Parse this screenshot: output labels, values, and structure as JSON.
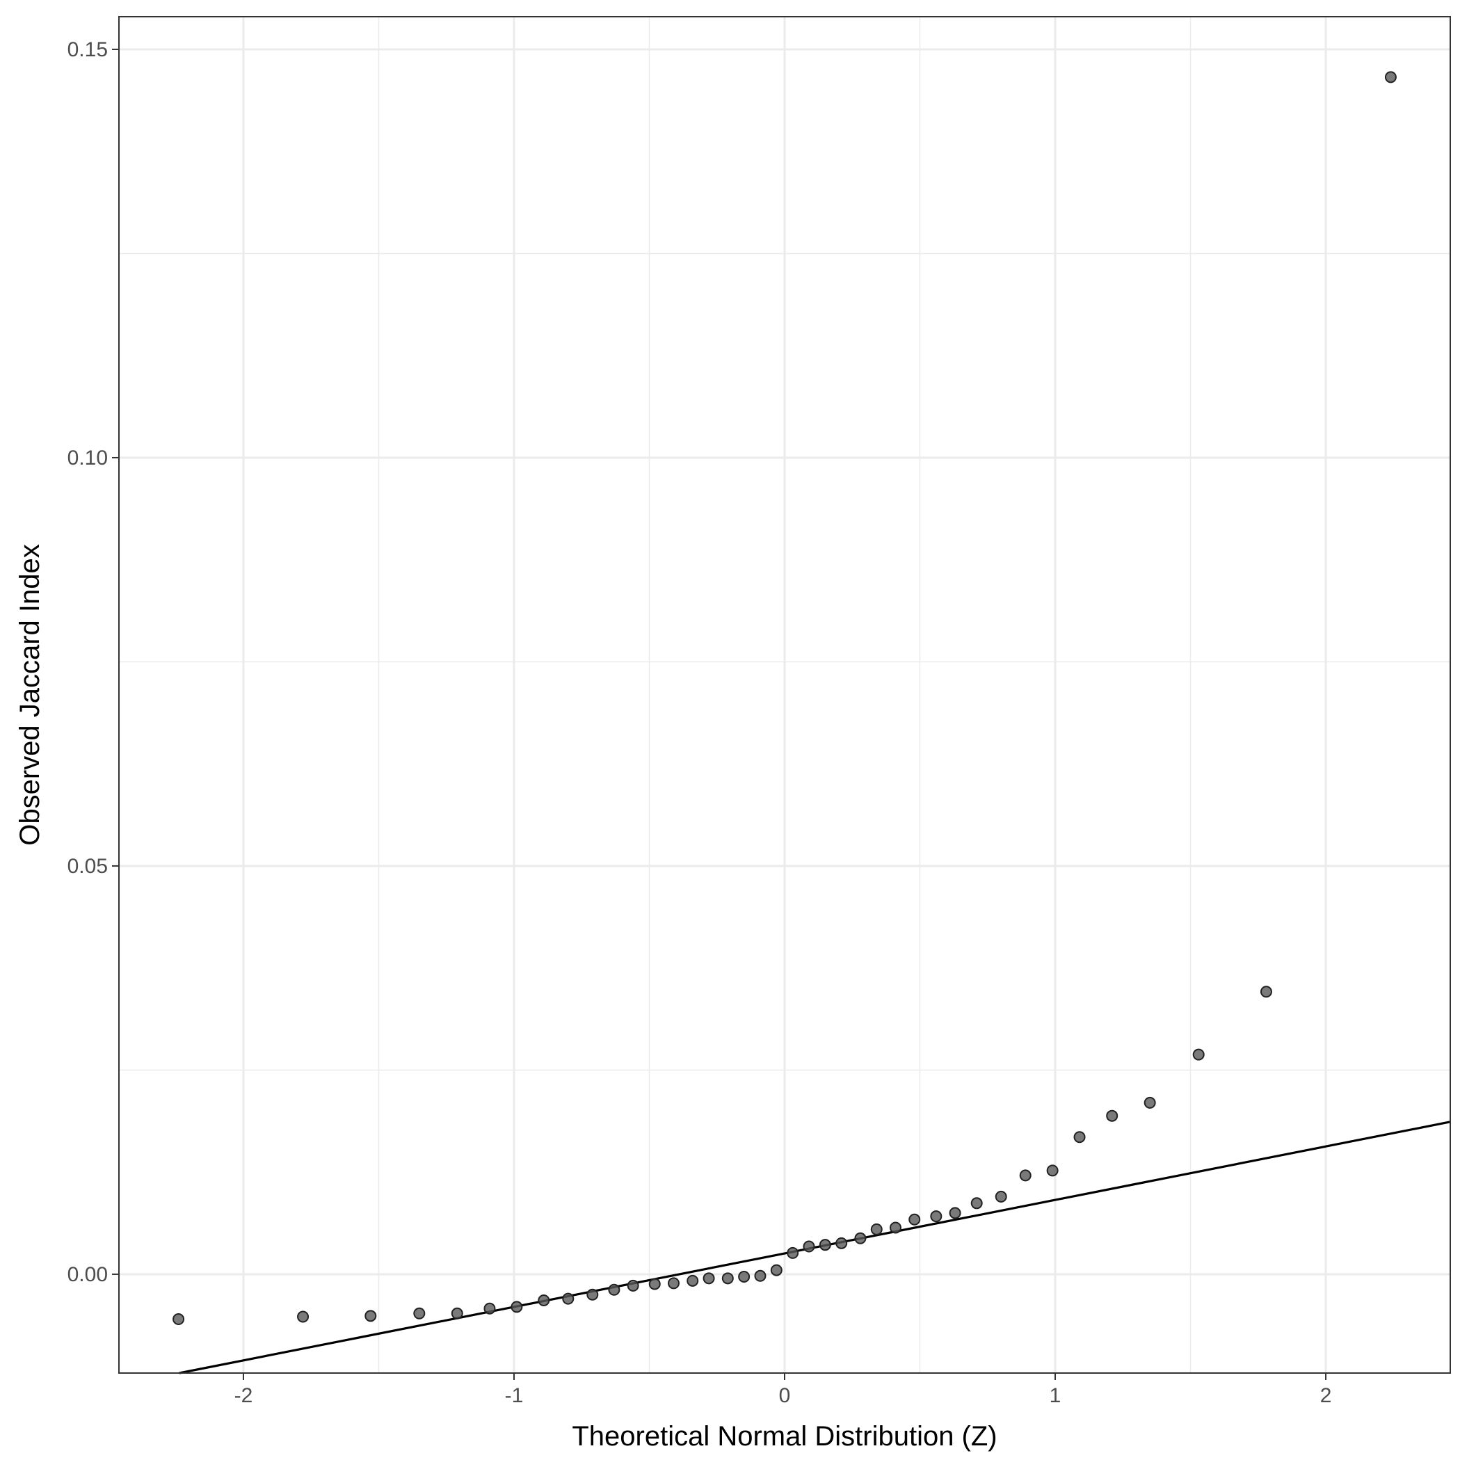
{
  "chart_data": {
    "type": "scatter",
    "title": "",
    "xlabel": "Theoretical Normal Distribution (Z)",
    "ylabel": "Observed Jaccard Index",
    "xlim": [
      -2.46,
      2.46
    ],
    "ylim": [
      -0.0121,
      0.154
    ],
    "x_ticks": [
      -2,
      -1,
      0,
      1,
      2
    ],
    "x_tick_labels": [
      "-2",
      "-1",
      "0",
      "1",
      "2"
    ],
    "y_ticks": [
      0.0,
      0.05,
      0.1,
      0.15
    ],
    "y_tick_labels": [
      "0.00",
      "0.05",
      "0.10",
      "0.15"
    ],
    "grid": true,
    "reference_line": {
      "intercept": 0.00255,
      "slope": 0.00655
    },
    "point_color": "#595959",
    "line_color": "#000000",
    "points": [
      {
        "x": -2.24,
        "y": -0.0055
      },
      {
        "x": -1.78,
        "y": -0.0052
      },
      {
        "x": -1.53,
        "y": -0.0051
      },
      {
        "x": -1.35,
        "y": -0.0048
      },
      {
        "x": -1.21,
        "y": -0.0048
      },
      {
        "x": -1.09,
        "y": -0.0042
      },
      {
        "x": -0.99,
        "y": -0.004
      },
      {
        "x": -0.89,
        "y": -0.0032
      },
      {
        "x": -0.8,
        "y": -0.003
      },
      {
        "x": -0.71,
        "y": -0.0025
      },
      {
        "x": -0.63,
        "y": -0.0019
      },
      {
        "x": -0.56,
        "y": -0.0014
      },
      {
        "x": -0.48,
        "y": -0.0012
      },
      {
        "x": -0.41,
        "y": -0.0011
      },
      {
        "x": -0.34,
        "y": -0.0008
      },
      {
        "x": -0.28,
        "y": -0.0005
      },
      {
        "x": -0.21,
        "y": -0.0005
      },
      {
        "x": -0.15,
        "y": -0.0003
      },
      {
        "x": -0.09,
        "y": -0.0002
      },
      {
        "x": -0.03,
        "y": 0.0005
      },
      {
        "x": 0.03,
        "y": 0.0026
      },
      {
        "x": 0.09,
        "y": 0.0034
      },
      {
        "x": 0.15,
        "y": 0.0036
      },
      {
        "x": 0.21,
        "y": 0.0038
      },
      {
        "x": 0.28,
        "y": 0.0044
      },
      {
        "x": 0.34,
        "y": 0.0055
      },
      {
        "x": 0.41,
        "y": 0.0057
      },
      {
        "x": 0.48,
        "y": 0.0067
      },
      {
        "x": 0.56,
        "y": 0.0071
      },
      {
        "x": 0.63,
        "y": 0.0075
      },
      {
        "x": 0.71,
        "y": 0.0087
      },
      {
        "x": 0.8,
        "y": 0.0095
      },
      {
        "x": 0.89,
        "y": 0.0121
      },
      {
        "x": 0.99,
        "y": 0.0127
      },
      {
        "x": 1.09,
        "y": 0.0168
      },
      {
        "x": 1.21,
        "y": 0.0194
      },
      {
        "x": 1.35,
        "y": 0.021
      },
      {
        "x": 1.53,
        "y": 0.0269
      },
      {
        "x": 1.78,
        "y": 0.0346
      },
      {
        "x": 2.24,
        "y": 0.1466
      }
    ]
  }
}
